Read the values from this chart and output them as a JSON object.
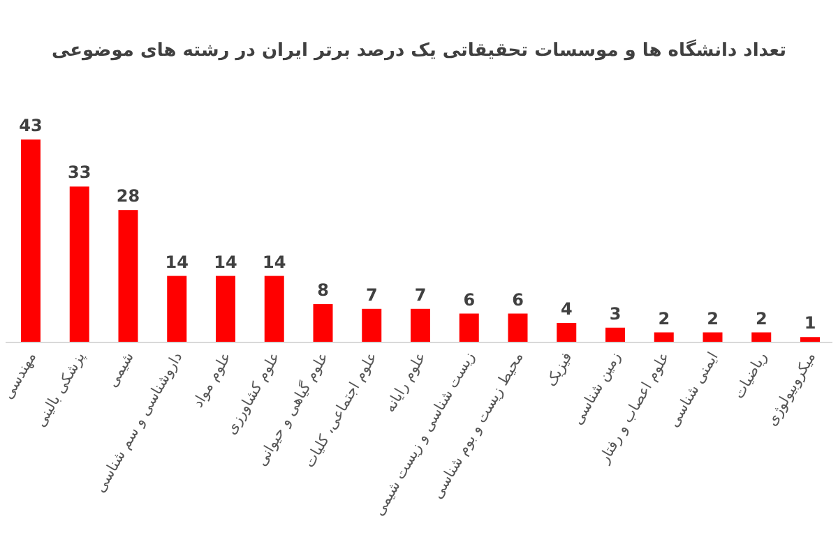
{
  "chart_data": {
    "type": "bar",
    "title": "تعداد دانشگاه ها و موسسات تحقیقاتی یک درصد برتر ایران در رشته های موضوعی",
    "categories": [
      "مهندسی",
      "پزشکی بالینی",
      "شیمی",
      "داروشناسی و سم شناسی",
      "علوم مواد",
      "علوم کشاورزی",
      "علوم گیاهی و حیوانی",
      "علوم اجتماعی، کلیات",
      "علوم رایانه",
      "زیست شناسی و زیست شیمی",
      "محیط زیست و بوم شناسی",
      "فیزیک",
      "زمین شناسی",
      "علوم اعصاب و رفتار",
      "ایمنی شناسی",
      "ریاضیات",
      "میکروبیولوژی"
    ],
    "values": [
      43,
      33,
      28,
      14,
      14,
      14,
      8,
      7,
      7,
      6,
      6,
      4,
      3,
      2,
      2,
      2,
      1
    ],
    "color": "#ff0000",
    "data_labels": true
  }
}
